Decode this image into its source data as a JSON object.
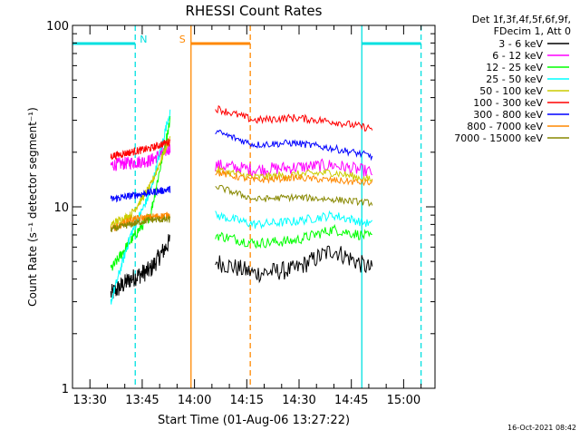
{
  "chart_data": {
    "type": "line",
    "title": "RHESSI Count Rates",
    "xlabel": "Start Time (01-Aug-06 13:27:22)",
    "ylabel": "Count Rate (s⁻¹ detector segment⁻¹)",
    "y_scale": "log",
    "ylim": [
      1,
      100
    ],
    "xlim": [
      "13:25",
      "15:09"
    ],
    "x_ticks": [
      "13:30",
      "13:45",
      "14:00",
      "14:15",
      "14:30",
      "14:45",
      "15:00"
    ],
    "y_ticks": [
      "1",
      "10",
      "100"
    ],
    "grid": false,
    "legend_placement": "top-right outside",
    "legend_header": [
      "Det 1f,3f,4f,5f,6f,9f,",
      "FDecim 1, Att 0"
    ],
    "footer_timestamp": "16-Oct-2021 08:42",
    "segments": [
      {
        "start": "13:36",
        "end": "13:53"
      },
      {
        "start": "14:06",
        "end": "14:51"
      }
    ],
    "series": [
      {
        "name": "3 - 6 keV",
        "color": "#000000",
        "values": [
          [
            3.3,
            4.0,
            4.5,
            6.5
          ],
          [
            5.0,
            4.3,
            4.5,
            5.8,
            4.5
          ]
        ]
      },
      {
        "name": "6 - 12 keV",
        "color": "#ff00ff",
        "values": [
          [
            17.0,
            17.5,
            18.0,
            21.0
          ],
          [
            17.0,
            16.0,
            16.5,
            17.0,
            15.5
          ]
        ]
      },
      {
        "name": "12 - 25 keV",
        "color": "#00ff00",
        "values": [
          [
            4.5,
            6.5,
            9.0,
            30.0
          ],
          [
            7.0,
            6.3,
            6.5,
            7.5,
            6.8
          ]
        ]
      },
      {
        "name": "25 - 50 keV",
        "color": "#00ffff",
        "values": [
          [
            3.0,
            7.0,
            12.0,
            34.0
          ],
          [
            9.0,
            8.0,
            8.3,
            9.0,
            8.0
          ]
        ]
      },
      {
        "name": "50 - 100 keV",
        "color": "#cccc00",
        "values": [
          [
            8.0,
            9.0,
            13.0,
            24.0
          ],
          [
            16.0,
            14.5,
            15.0,
            15.5,
            14.0
          ]
        ]
      },
      {
        "name": "100 - 300 keV",
        "color": "#ff0000",
        "values": [
          [
            19.0,
            20.0,
            21.0,
            23.0
          ],
          [
            35.0,
            30.0,
            31.0,
            29.5,
            27.0
          ]
        ]
      },
      {
        "name": "300 - 800 keV",
        "color": "#0000ff",
        "values": [
          [
            11.0,
            11.5,
            12.0,
            12.5
          ],
          [
            26.0,
            22.0,
            22.5,
            21.0,
            19.0
          ]
        ]
      },
      {
        "name": "800 - 7000 keV",
        "color": "#ff8800",
        "values": [
          [
            7.5,
            8.5,
            8.8,
            9.0
          ],
          [
            15.5,
            14.0,
            14.5,
            14.0,
            13.5
          ]
        ]
      },
      {
        "name": "7000 - 15000 keV",
        "color": "#888800",
        "values": [
          [
            7.5,
            8.0,
            8.5,
            8.5
          ],
          [
            13.0,
            11.0,
            11.3,
            11.0,
            10.5
          ]
        ]
      }
    ],
    "attenuator_periods": [
      {
        "label": "N",
        "color": "#00e0e0",
        "intervals": [
          [
            "13:25",
            "13:43"
          ],
          [
            "14:48",
            "15:05"
          ]
        ]
      },
      {
        "label": "S",
        "color": "#ff8800",
        "intervals": [
          [
            "13:59",
            "14:16"
          ]
        ]
      }
    ],
    "boundary_lines": [
      {
        "time": "13:43",
        "color": "#00e0e0",
        "style": "dashed"
      },
      {
        "time": "13:59",
        "color": "#ff8800",
        "style": "solid"
      },
      {
        "time": "14:16",
        "color": "#ff8800",
        "style": "dashed"
      },
      {
        "time": "14:48",
        "color": "#00e0e0",
        "style": "solid"
      },
      {
        "time": "15:05",
        "color": "#00e0e0",
        "style": "dashed"
      }
    ]
  }
}
